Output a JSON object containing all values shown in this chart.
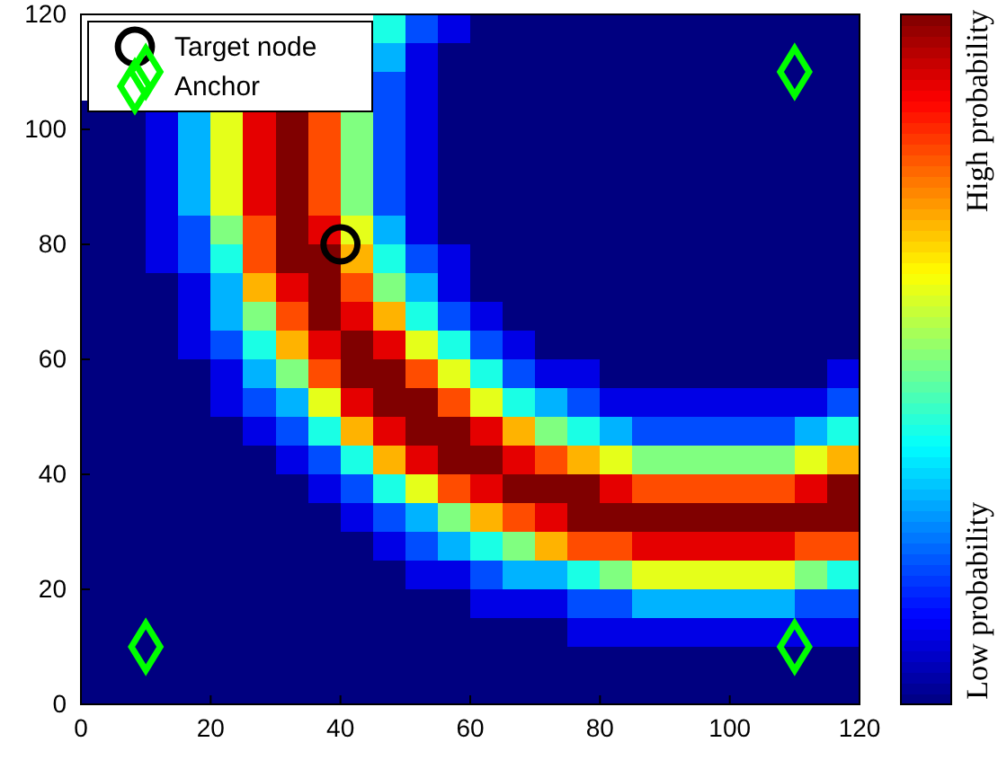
{
  "chart_data": {
    "type": "heatmap",
    "xlim": [
      0,
      120
    ],
    "ylim": [
      0,
      120
    ],
    "xticks": [
      0,
      20,
      40,
      60,
      80,
      100,
      120
    ],
    "yticks": [
      0,
      20,
      40,
      60,
      80,
      100,
      120
    ],
    "clim": [
      0,
      1
    ],
    "cticks": [
      {
        "value": 0.15,
        "label": "Low probability"
      },
      {
        "value": 0.86,
        "label": "High probability"
      }
    ],
    "legend": "top left",
    "cells": [
      [
        null,
        null,
        null,
        null,
        null,
        null,
        null,
        null,
        null,
        0.4,
        0.2,
        0.1,
        0,
        0,
        0,
        0,
        0,
        0,
        0,
        0,
        0,
        0,
        0,
        0
      ],
      [
        null,
        null,
        null,
        null,
        null,
        null,
        null,
        null,
        null,
        0.3,
        0.1,
        0,
        0,
        0,
        0,
        0,
        0,
        0,
        0,
        0,
        0,
        0,
        0,
        0
      ],
      [
        null,
        null,
        null,
        null,
        null,
        null,
        null,
        null,
        null,
        0.2,
        0.1,
        0,
        0,
        0,
        0,
        0,
        0,
        0,
        0,
        0,
        0,
        0,
        0,
        0
      ],
      [
        0,
        0,
        0.1,
        0.3,
        0.6,
        0.9,
        1,
        0.8,
        0.5,
        0.2,
        0.1,
        0,
        0,
        0,
        0,
        0,
        0,
        0,
        0,
        0,
        0,
        0,
        0,
        0
      ],
      [
        0,
        0,
        0.1,
        0.3,
        0.6,
        0.9,
        1,
        0.8,
        0.5,
        0.2,
        0.1,
        0,
        0,
        0,
        0,
        0,
        0,
        0,
        0,
        0,
        0,
        0,
        0,
        0
      ],
      [
        0,
        0,
        0.1,
        0.3,
        0.6,
        0.9,
        1,
        0.8,
        0.5,
        0.2,
        0.1,
        0,
        0,
        0,
        0,
        0,
        0,
        0,
        0,
        0,
        0,
        0,
        0,
        0
      ],
      [
        0,
        0,
        0.1,
        0.3,
        0.6,
        0.9,
        1,
        0.8,
        0.5,
        0.2,
        0.1,
        0,
        0,
        0,
        0,
        0,
        0,
        0,
        0,
        0,
        0,
        0,
        0,
        0
      ],
      [
        0,
        0,
        0.1,
        0.2,
        0.5,
        0.8,
        1,
        0.9,
        0.6,
        0.3,
        0.1,
        0,
        0,
        0,
        0,
        0,
        0,
        0,
        0,
        0,
        0,
        0,
        0,
        0
      ],
      [
        0,
        0,
        0.1,
        0.2,
        0.4,
        0.8,
        1,
        1,
        0.7,
        0.4,
        0.2,
        0.1,
        0,
        0,
        0,
        0,
        0,
        0,
        0,
        0,
        0,
        0,
        0,
        0
      ],
      [
        0,
        0,
        0,
        0.1,
        0.3,
        0.7,
        0.9,
        1,
        0.8,
        0.5,
        0.3,
        0.1,
        0,
        0,
        0,
        0,
        0,
        0,
        0,
        0,
        0,
        0,
        0,
        0
      ],
      [
        0,
        0,
        0,
        0.1,
        0.3,
        0.5,
        0.8,
        1,
        0.9,
        0.7,
        0.4,
        0.2,
        0.1,
        0,
        0,
        0,
        0,
        0,
        0,
        0,
        0,
        0,
        0,
        0
      ],
      [
        0,
        0,
        0,
        0.1,
        0.2,
        0.4,
        0.7,
        0.9,
        1,
        0.9,
        0.6,
        0.4,
        0.2,
        0.1,
        0,
        0,
        0,
        0,
        0,
        0,
        0,
        0,
        0,
        0
      ],
      [
        0,
        0,
        0,
        0,
        0.1,
        0.3,
        0.5,
        0.8,
        1,
        1,
        0.8,
        0.6,
        0.4,
        0.2,
        0.1,
        0.1,
        0,
        0,
        0,
        0,
        0,
        0,
        0,
        0.1
      ],
      [
        0,
        0,
        0,
        0,
        0.1,
        0.2,
        0.3,
        0.6,
        0.9,
        1,
        1,
        0.8,
        0.6,
        0.4,
        0.3,
        0.2,
        0.1,
        0.1,
        0.1,
        0.1,
        0.1,
        0.1,
        0.1,
        0.2
      ],
      [
        0,
        0,
        0,
        0,
        0,
        0.1,
        0.2,
        0.4,
        0.7,
        0.9,
        1,
        1,
        0.9,
        0.7,
        0.5,
        0.4,
        0.3,
        0.2,
        0.2,
        0.2,
        0.2,
        0.2,
        0.3,
        0.4
      ],
      [
        0,
        0,
        0,
        0,
        0,
        0,
        0.1,
        0.2,
        0.4,
        0.7,
        0.9,
        1,
        1,
        0.9,
        0.8,
        0.7,
        0.6,
        0.5,
        0.5,
        0.5,
        0.5,
        0.5,
        0.6,
        0.7
      ],
      [
        0,
        0,
        0,
        0,
        0,
        0,
        0,
        0.1,
        0.2,
        0.4,
        0.6,
        0.8,
        0.9,
        1,
        1,
        1,
        0.9,
        0.8,
        0.8,
        0.8,
        0.8,
        0.8,
        0.9,
        1
      ],
      [
        0,
        0,
        0,
        0,
        0,
        0,
        0,
        0,
        0.1,
        0.2,
        0.3,
        0.5,
        0.7,
        0.8,
        0.9,
        1,
        1,
        1,
        1,
        1,
        1,
        1,
        1,
        1
      ],
      [
        0,
        0,
        0,
        0,
        0,
        0,
        0,
        0,
        0,
        0.1,
        0.2,
        0.3,
        0.4,
        0.5,
        0.7,
        0.8,
        0.8,
        0.9,
        0.9,
        0.9,
        0.9,
        0.9,
        0.8,
        0.8
      ],
      [
        0,
        0,
        0,
        0,
        0,
        0,
        0,
        0,
        0,
        0,
        0.1,
        0.1,
        0.2,
        0.3,
        0.3,
        0.4,
        0.5,
        0.6,
        0.6,
        0.6,
        0.6,
        0.6,
        0.5,
        0.4
      ],
      [
        0,
        0,
        0,
        0,
        0,
        0,
        0,
        0,
        0,
        0,
        0,
        0,
        0.1,
        0.1,
        0.1,
        0.2,
        0.2,
        0.3,
        0.3,
        0.3,
        0.3,
        0.3,
        0.2,
        0.2
      ],
      [
        0,
        0,
        0,
        0,
        0,
        0,
        0,
        0,
        0,
        0,
        0,
        0,
        0,
        0,
        0,
        0.1,
        0.1,
        0.1,
        0.1,
        0.1,
        0.1,
        0.1,
        0.1,
        0.1
      ],
      [
        0,
        0,
        0,
        0,
        0,
        0,
        0,
        0,
        0,
        0,
        0,
        0,
        0,
        0,
        0,
        0,
        0,
        0,
        0,
        0,
        0,
        0,
        0,
        0
      ],
      [
        0,
        0,
        0,
        0,
        0,
        0,
        0,
        0,
        0,
        0,
        0,
        0,
        0,
        0,
        0,
        0,
        0,
        0,
        0,
        0,
        0,
        0,
        0,
        0
      ]
    ],
    "series": [
      {
        "name": "Target node",
        "type": "scatter",
        "marker": "circle",
        "color": "#000000",
        "x": [
          40
        ],
        "values": [
          80
        ]
      },
      {
        "name": "Anchor",
        "type": "scatter",
        "marker": "diamond",
        "color": "#00ff00",
        "x": [
          10,
          110,
          10,
          110
        ],
        "values": [
          110,
          110,
          10,
          10
        ]
      }
    ]
  }
}
